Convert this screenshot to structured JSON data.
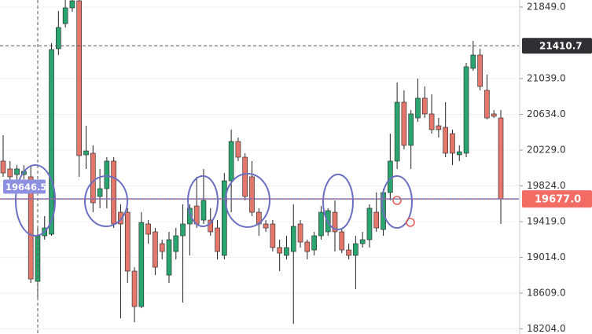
{
  "chart_data": {
    "type": "candlestick",
    "open": [
      20105,
      20016,
      19953,
      19953,
      19927,
      18743,
      19259,
      19277,
      21377,
      21662,
      21840,
      21920,
      20176,
      20194,
      19704,
      19793,
      20105,
      19526,
      19526,
      18859,
      18458,
      19393,
      19304,
      19170,
      18814,
      19081,
      19259,
      19393,
      19597,
      19437,
      19437,
      19348,
      19037,
      19882,
      20327,
      20149,
      19927,
      19526,
      19393,
      19393,
      19126,
      19037,
      19081,
      19393,
      19188,
      19099,
      19259,
      19304,
      19526,
      19304,
      19099,
      19037,
      19170,
      19215,
      19526,
      19330,
      19749,
      20105,
      20772,
      20283,
      20594,
      20817,
      20639,
      20505,
      20487,
      20416,
      20176,
      20194,
      21155,
      21306,
      20906,
      20639,
      20594
    ],
    "high": [
      20398,
      20105,
      20060,
      20060,
      20060,
      19348,
      19482,
      21440,
      21804,
      21929,
      21929,
      21929,
      20505,
      20283,
      20016,
      20149,
      20149,
      19615,
      19571,
      18903,
      19526,
      19437,
      19348,
      19215,
      19304,
      19348,
      19615,
      19615,
      19927,
      20016,
      19571,
      19437,
      19971,
      20461,
      20372,
      20194,
      20105,
      19571,
      19437,
      19437,
      19215,
      19259,
      19615,
      19437,
      19215,
      19304,
      19597,
      19571,
      19660,
      19348,
      19170,
      19259,
      19304,
      19615,
      19749,
      19793,
      20416,
      20995,
      20906,
      20683,
      21039,
      20950,
      20861,
      20594,
      20772,
      20461,
      20283,
      21217,
      21466,
      21377,
      21084,
      20683,
      20683
    ],
    "low": [
      19927,
      19838,
      19882,
      19900,
      18725,
      18547,
      19215,
      19259,
      21306,
      21618,
      21796,
      19927,
      20016,
      19526,
      19571,
      19571,
      19348,
      18325,
      18725,
      18280,
      18440,
      19170,
      18814,
      18992,
      18725,
      18992,
      18503,
      19037,
      19348,
      19393,
      19259,
      18992,
      18992,
      19526,
      20105,
      19660,
      19482,
      19259,
      19304,
      19081,
      18859,
      18992,
      18262,
      19126,
      18992,
      19037,
      19215,
      19259,
      19081,
      19063,
      18992,
      18654,
      19126,
      19126,
      19304,
      19259,
      19660,
      20016,
      20238,
      20016,
      20550,
      20594,
      20416,
      20372,
      20149,
      20060,
      20105,
      20149,
      21128,
      20906,
      20576,
      20594,
      19393
    ],
    "close": [
      19971,
      19927,
      20016,
      19989,
      18770,
      19259,
      19348,
      21368,
      21618,
      21840,
      21920,
      20167,
      20220,
      19633,
      19793,
      20105,
      19393,
      19393,
      18859,
      18458,
      19410,
      19277,
      18903,
      19081,
      19215,
      19259,
      19393,
      19571,
      19393,
      19660,
      19304,
      19081,
      19882,
      20327,
      20149,
      19704,
      19526,
      19393,
      19348,
      19126,
      19063,
      19126,
      19366,
      19188,
      19081,
      19259,
      19526,
      19544,
      19304,
      19099,
      19037,
      19170,
      19215,
      19571,
      19348,
      19749,
      20105,
      20772,
      20283,
      20639,
      20817,
      20639,
      20461,
      20461,
      20194,
      20194,
      20211,
      21173,
      21306,
      20950,
      20594,
      20612,
      19677
    ],
    "up_color": "#2aa56f",
    "down_color": "#e4776c",
    "ylim": [
      18147,
      21929
    ],
    "yticks": [
      {
        "value": 21849,
        "label": "21849.0"
      },
      {
        "value": 21039,
        "label": "21039.0"
      },
      {
        "value": 20634,
        "label": "20634.0"
      },
      {
        "value": 20229,
        "label": "20229.0"
      },
      {
        "value": 19824,
        "label": "19824.0"
      },
      {
        "value": 19419,
        "label": "19419.0"
      },
      {
        "value": 19014,
        "label": "19014.0"
      },
      {
        "value": 18609,
        "label": "18609.0"
      },
      {
        "value": 18204,
        "label": "18204.0"
      }
    ],
    "grid": true,
    "crosshair_price": {
      "value": 21410.7,
      "label": "21410.7"
    },
    "last_price": {
      "value": 19677,
      "label": "19677.0"
    },
    "marker_price": {
      "value": 19646.5,
      "label": "19646.5"
    }
  }
}
